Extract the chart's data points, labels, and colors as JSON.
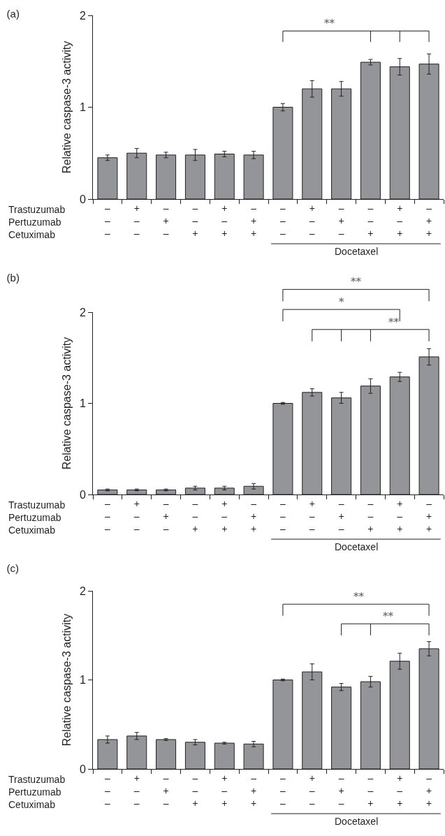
{
  "chart_data": [
    {
      "type": "bar",
      "title": "(a)",
      "ylabel": "Relative caspase-3 activity",
      "categories": [
        "–\n–\n–",
        "+\n–\n–",
        "–\n+\n–",
        "–\n–\n+",
        "+\n–\n+",
        "–\n+\n+",
        "–\n–\n–",
        "+\n–\n–",
        "–\n+\n–",
        "–\n–\n+",
        "+\n–\n+",
        "–\n+\n+"
      ],
      "values": [
        0.45,
        0.5,
        0.48,
        0.48,
        0.49,
        0.48,
        1.0,
        1.2,
        1.2,
        1.49,
        1.44,
        1.47
      ],
      "errors": [
        0.03,
        0.05,
        0.03,
        0.06,
        0.03,
        0.04,
        0.04,
        0.09,
        0.08,
        0.03,
        0.09,
        0.11
      ],
      "color": "#939598",
      "ylim": [
        0,
        2
      ],
      "yticks": [
        0,
        1,
        2
      ],
      "grid": false,
      "annotations": [
        "Trastuzumab",
        "Pertuzumab",
        "Cetuximab",
        "Docetaxel",
        "**"
      ]
    },
    {
      "type": "bar",
      "title": "(b)",
      "ylabel": "Relative caspase-3 activity",
      "categories": [
        "–\n–\n–",
        "+\n–\n–",
        "–\n+\n–",
        "–\n–\n+",
        "+\n–\n+",
        "–\n+\n+",
        "–\n–\n–",
        "+\n–\n–",
        "–\n+\n–",
        "–\n–\n+",
        "+\n–\n+",
        "–\n+\n+"
      ],
      "values": [
        0.05,
        0.05,
        0.05,
        0.07,
        0.07,
        0.09,
        1.0,
        1.12,
        1.06,
        1.19,
        1.29,
        1.51
      ],
      "errors": [
        0.01,
        0.01,
        0.01,
        0.02,
        0.02,
        0.03,
        0.01,
        0.04,
        0.06,
        0.08,
        0.05,
        0.09
      ],
      "color": "#939598",
      "ylim": [
        0,
        2
      ],
      "yticks": [
        0,
        1,
        2
      ],
      "grid": false,
      "annotations": [
        "Trastuzumab",
        "Pertuzumab",
        "Cetuximab",
        "Docetaxel",
        "**",
        "*",
        "**"
      ]
    },
    {
      "type": "bar",
      "title": "(c)",
      "ylabel": "Relative caspase-3 activity",
      "categories": [
        "–\n–\n–",
        "+\n–\n–",
        "–\n+\n–",
        "–\n–\n+",
        "+\n–\n+",
        "–\n+\n+",
        "–\n–\n–",
        "+\n–\n–",
        "–\n+\n–",
        "–\n–\n+",
        "+\n–\n+",
        "–\n+\n+"
      ],
      "values": [
        0.33,
        0.37,
        0.33,
        0.3,
        0.29,
        0.28,
        1.0,
        1.09,
        0.92,
        0.98,
        1.21,
        1.35
      ],
      "errors": [
        0.04,
        0.04,
        0.01,
        0.03,
        0.01,
        0.03,
        0.01,
        0.09,
        0.04,
        0.06,
        0.09,
        0.08
      ],
      "color": "#939598",
      "ylim": [
        0,
        2
      ],
      "yticks": [
        0,
        1,
        2
      ],
      "grid": false,
      "annotations": [
        "Trastuzumab",
        "Pertuzumab",
        "Cetuximab",
        "Docetaxel",
        "**",
        "**"
      ]
    }
  ]
}
